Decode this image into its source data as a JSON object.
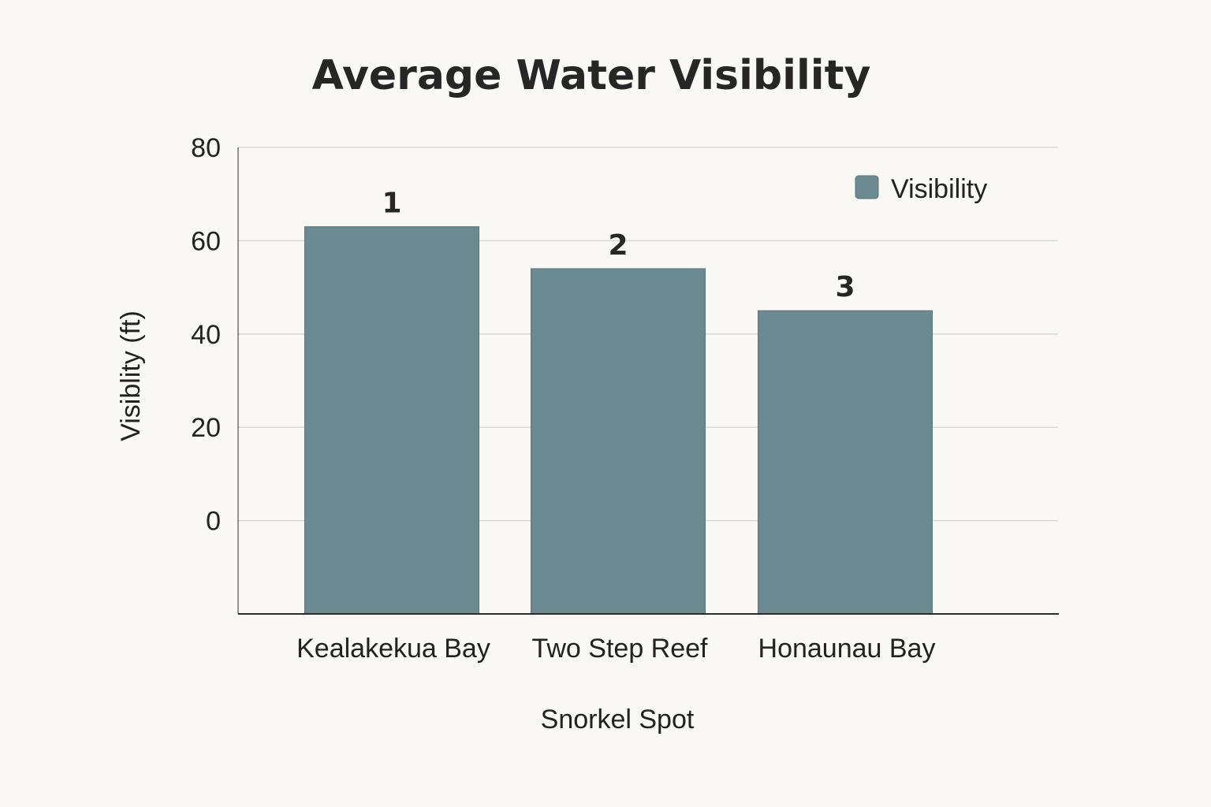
{
  "chart_data": {
    "type": "bar",
    "title": "Average Water Visibility",
    "xlabel": "Snorkel Spot",
    "ylabel": "Visiblity (ft)",
    "categories": [
      "Kealakekua Bay",
      "Two Step Reef",
      "Honaunau Bay"
    ],
    "series": [
      {
        "name": "Visibility",
        "values": [
          63,
          54,
          45
        ],
        "data_labels": [
          "1",
          "2",
          "3"
        ],
        "color": "#6b8a91"
      }
    ],
    "yticks": [
      "80",
      "60",
      "40",
      "20",
      "0"
    ],
    "ytick_values": [
      80,
      60,
      40,
      20,
      0
    ],
    "ylim": [
      -20,
      80
    ],
    "grid": true,
    "legend_position": "top-right",
    "colors": {
      "bar": "#6b8a91",
      "grid": "#d9d9d6",
      "axis": "#2b2b2b",
      "background": "#f9f8f4"
    }
  }
}
